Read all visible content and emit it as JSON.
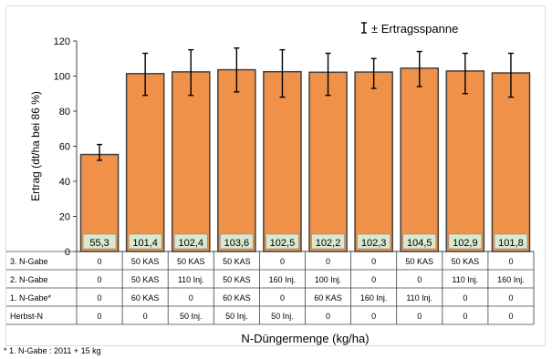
{
  "chart_data": {
    "type": "bar",
    "title": "",
    "legend": "± Ertragsspanne",
    "ylabel": "Ertrag (dt/ha bei 86 %)",
    "xlabel": "N-Düngermenge (kg/ha)",
    "ylim": [
      0,
      120
    ],
    "yticks": [
      0,
      20,
      40,
      60,
      80,
      100,
      120
    ],
    "grid": false,
    "bar_color": "#f0914a",
    "bar_edge_color": "#404040",
    "value_box_color": "#d9e8cf",
    "values": [
      55.3,
      101.4,
      102.4,
      103.6,
      102.5,
      102.2,
      102.3,
      104.5,
      102.9,
      101.8
    ],
    "value_labels": [
      "55,3",
      "101,4",
      "102,4",
      "103,6",
      "102,5",
      "102,2",
      "102,3",
      "104,5",
      "102,9",
      "101,8"
    ],
    "error_low": [
      52,
      89,
      89,
      91,
      88,
      89,
      93,
      94,
      90,
      88
    ],
    "error_high": [
      61,
      113,
      115,
      116,
      115,
      113,
      110,
      114,
      113,
      113
    ],
    "table": {
      "row_labels": [
        "3. N-Gabe",
        "2. N-Gabe",
        "1. N-Gabe*",
        "Herbst-N"
      ],
      "rows": [
        [
          "0",
          "50 KAS",
          "50 KAS",
          "50 KAS",
          "0",
          "0",
          "0",
          "50 KAS",
          "50 KAS",
          "0"
        ],
        [
          "0",
          "50 KAS",
          "110 Inj.",
          "50 KAS",
          "160 Inj.",
          "100 Inj.",
          "0",
          "0",
          "110 Inj.",
          "160 Inj."
        ],
        [
          "0",
          "60 KAS",
          "0",
          "60 KAS",
          "0",
          "60 KAS",
          "160 Inj.",
          "110 Inj.",
          "0",
          "0"
        ],
        [
          "0",
          "0",
          "50 Inj.",
          "50 Inj.",
          "50 Inj.",
          "0",
          "0",
          "0",
          "0",
          "0"
        ]
      ]
    }
  },
  "footnote": "* 1. N-Gabe : 2011 + 15 kg"
}
